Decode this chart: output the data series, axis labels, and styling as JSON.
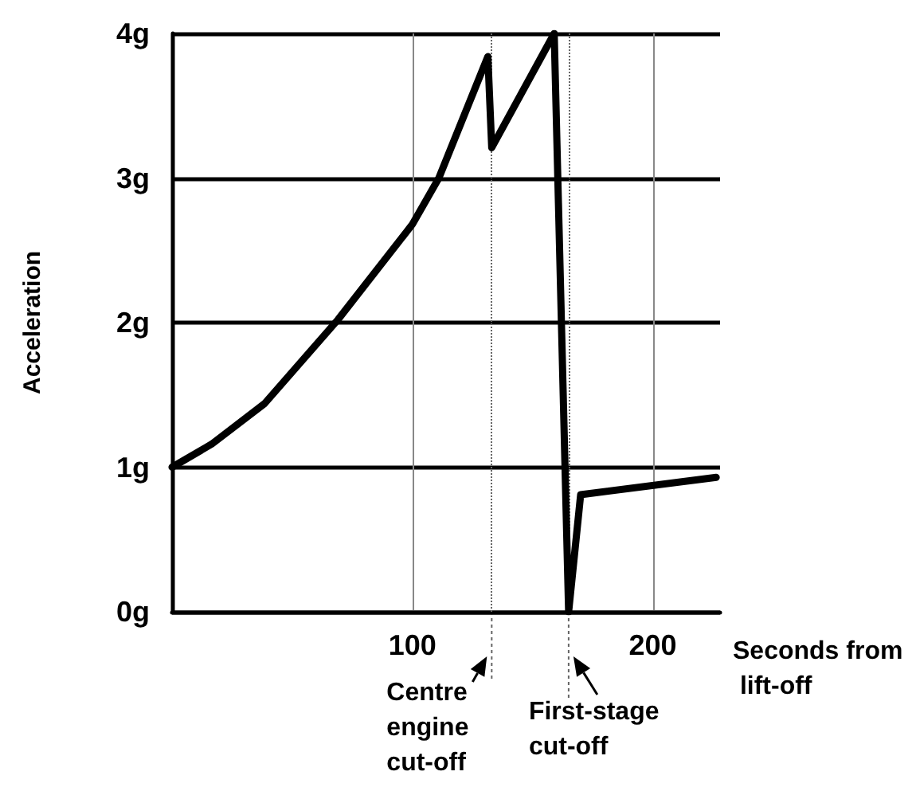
{
  "chart_data": {
    "type": "line",
    "xlabel": "Seconds from lift-off",
    "ylabel": "Acceleration",
    "x": [
      0,
      16.5,
      38.5,
      69,
      100,
      111,
      131.4,
      133,
      159,
      165,
      170,
      226.4
    ],
    "series": [
      {
        "color": "#000000",
        "values": [
          1,
          1.16,
          1.44,
          2.02,
          2.68,
          3,
          3.84,
          3.21,
          4,
          0,
          0.81,
          0.93
        ]
      }
    ],
    "xlim": [
      0,
      228
    ],
    "xticks": [
      100,
      200
    ],
    "ylim": [
      0,
      4
    ],
    "yticks": [
      {
        "value": 0,
        "label": "0g"
      },
      {
        "value": 1,
        "label": "1g"
      },
      {
        "value": 2,
        "label": "2g"
      },
      {
        "value": 3,
        "label": "3g"
      },
      {
        "value": 4,
        "label": "4g"
      }
    ],
    "ref_lines": [
      {
        "axis": "x",
        "value": 133,
        "label": "Centre engine cut-off",
        "line_style": "dotted"
      },
      {
        "axis": "x",
        "value": 165,
        "label": "First-stage cut-off",
        "line_style": "dotted"
      }
    ],
    "grid": true,
    "marker": "none",
    "line_style": "solid"
  }
}
